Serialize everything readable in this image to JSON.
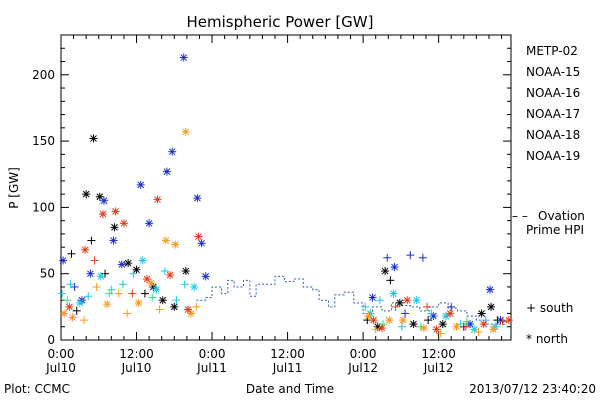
{
  "chart_data": {
    "type": "scatter",
    "title": "Hemispheric Power [GW]",
    "xlabel": "Date and Time",
    "ylabel": "P [GW]",
    "ylim": [
      0,
      230
    ],
    "xlim": [
      "2013-07-10 00:00",
      "2013-07-12 23:30"
    ],
    "y_ticks": [
      0,
      50,
      100,
      150,
      200
    ],
    "x_ticks": [
      {
        "t": "2013-07-10 00:00",
        "line1": "0:00",
        "line2": "Jul10"
      },
      {
        "t": "2013-07-10 12:00",
        "line1": "12:00",
        "line2": "Jul10"
      },
      {
        "t": "2013-07-11 00:00",
        "line1": "0:00",
        "line2": "Jul11"
      },
      {
        "t": "2013-07-11 12:00",
        "line1": "12:00",
        "line2": "Jul11"
      },
      {
        "t": "2013-07-12 00:00",
        "line1": "0:00",
        "line2": "Jul12"
      },
      {
        "t": "2013-07-12 12:00",
        "line1": "12:00",
        "line2": "Jul12"
      }
    ],
    "grid": false,
    "legend_position": "right",
    "marker_legend": {
      "south": "+ south",
      "north": "* north"
    },
    "series": [
      {
        "name": "METP-02",
        "color": "#000000",
        "points": [
          [
            "2013-07-10 01:40",
            "south",
            65
          ],
          [
            "2013-07-10 02:30",
            "south",
            22
          ],
          [
            "2013-07-10 04:00",
            "north",
            110
          ],
          [
            "2013-07-10 04:50",
            "south",
            75
          ],
          [
            "2013-07-10 05:10",
            "north",
            152
          ],
          [
            "2013-07-10 06:10",
            "north",
            108
          ],
          [
            "2013-07-10 07:00",
            "south",
            50
          ],
          [
            "2013-07-10 08:30",
            "north",
            85
          ],
          [
            "2013-07-10 10:40",
            "north",
            58
          ],
          [
            "2013-07-10 12:00",
            "north",
            53
          ],
          [
            "2013-07-10 13:20",
            "south",
            35
          ],
          [
            "2013-07-10 14:40",
            "north",
            40
          ],
          [
            "2013-07-10 16:10",
            "north",
            30
          ],
          [
            "2013-07-10 18:00",
            "north",
            25
          ],
          [
            "2013-07-10 19:50",
            "north",
            52
          ],
          [
            "2013-07-12 00:40",
            "south",
            15
          ],
          [
            "2013-07-12 02:20",
            "north",
            10
          ],
          [
            "2013-07-12 03:30",
            "north",
            52
          ],
          [
            "2013-07-12 04:20",
            "south",
            45
          ],
          [
            "2013-07-12 05:50",
            "north",
            28
          ],
          [
            "2013-07-12 08:00",
            "north",
            12
          ],
          [
            "2013-07-12 10:20",
            "south",
            15
          ],
          [
            "2013-07-12 12:40",
            "north",
            12
          ],
          [
            "2013-07-12 16:00",
            "south",
            10
          ],
          [
            "2013-07-12 18:50",
            "north",
            20
          ],
          [
            "2013-07-12 20:20",
            "north",
            25
          ],
          [
            "2013-07-12 21:20",
            "south",
            15
          ]
        ]
      },
      {
        "name": "NOAA-15",
        "color": "#1a2ecc",
        "points": [
          [
            "2013-07-10 00:20",
            "north",
            60
          ],
          [
            "2013-07-10 02:10",
            "south",
            40
          ],
          [
            "2013-07-10 03:20",
            "north",
            30
          ],
          [
            "2013-07-10 04:40",
            "north",
            50
          ],
          [
            "2013-07-10 06:50",
            "north",
            105
          ],
          [
            "2013-07-10 08:20",
            "north",
            75
          ],
          [
            "2013-07-10 09:40",
            "north",
            57
          ],
          [
            "2013-07-10 12:40",
            "north",
            117
          ],
          [
            "2013-07-10 14:00",
            "north",
            88
          ],
          [
            "2013-07-10 16:50",
            "north",
            127
          ],
          [
            "2013-07-10 17:40",
            "north",
            142
          ],
          [
            "2013-07-10 19:30",
            "north",
            213
          ],
          [
            "2013-07-10 21:40",
            "north",
            107
          ],
          [
            "2013-07-10 22:20",
            "north",
            73
          ],
          [
            "2013-07-10 23:00",
            "north",
            48
          ],
          [
            "2013-07-12 01:30",
            "north",
            32
          ],
          [
            "2013-07-12 03:50",
            "south",
            62
          ],
          [
            "2013-07-12 05:00",
            "north",
            55
          ],
          [
            "2013-07-12 06:40",
            "south",
            20
          ],
          [
            "2013-07-12 07:30",
            "south",
            64
          ],
          [
            "2013-07-12 09:30",
            "south",
            62
          ],
          [
            "2013-07-12 11:10",
            "north",
            18
          ],
          [
            "2013-07-12 14:00",
            "south",
            25
          ],
          [
            "2013-07-12 17:00",
            "north",
            12
          ],
          [
            "2013-07-12 20:10",
            "north",
            38
          ],
          [
            "2013-07-12 21:50",
            "north",
            15
          ]
        ]
      },
      {
        "name": "NOAA-16",
        "color": "#1ec8e6",
        "points": [
          [
            "2013-07-10 00:10",
            "south",
            35
          ],
          [
            "2013-07-10 01:30",
            "south",
            42
          ],
          [
            "2013-07-10 03:00",
            "north",
            28
          ],
          [
            "2013-07-10 04:20",
            "south",
            33
          ],
          [
            "2013-07-10 06:20",
            "north",
            48
          ],
          [
            "2013-07-10 08:00",
            "south",
            38
          ],
          [
            "2013-07-10 09:50",
            "south",
            42
          ],
          [
            "2013-07-10 11:30",
            "south",
            50
          ],
          [
            "2013-07-10 13:00",
            "north",
            60
          ],
          [
            "2013-07-10 15:10",
            "north",
            38
          ],
          [
            "2013-07-10 16:30",
            "south",
            52
          ],
          [
            "2013-07-10 18:20",
            "south",
            30
          ],
          [
            "2013-07-10 19:40",
            "south",
            42
          ],
          [
            "2013-07-10 21:10",
            "north",
            40
          ],
          [
            "2013-07-12 00:20",
            "south",
            25
          ],
          [
            "2013-07-12 01:10",
            "north",
            20
          ],
          [
            "2013-07-12 02:40",
            "south",
            30
          ],
          [
            "2013-07-12 04:50",
            "north",
            35
          ],
          [
            "2013-07-12 06:10",
            "south",
            10
          ],
          [
            "2013-07-12 08:30",
            "north",
            30
          ],
          [
            "2013-07-12 10:50",
            "south",
            20
          ],
          [
            "2013-07-12 13:10",
            "north",
            18
          ],
          [
            "2013-07-12 15:30",
            "south",
            12
          ],
          [
            "2013-07-12 17:40",
            "north",
            8
          ],
          [
            "2013-07-12 19:30",
            "south",
            15
          ],
          [
            "2013-07-12 21:00",
            "north",
            10
          ]
        ]
      },
      {
        "name": "NOAA-17",
        "color": "#2ee87a",
        "points": [
          [
            "2013-07-10 01:00",
            "south",
            30
          ],
          [
            "2013-07-10 07:40",
            "south",
            35
          ],
          [
            "2013-07-10 14:30",
            "south",
            32
          ],
          [
            "2013-07-12 03:10",
            "south",
            12
          ],
          [
            "2013-07-12 09:10",
            "south",
            10
          ],
          [
            "2013-07-12 16:30",
            "south",
            14
          ]
        ]
      },
      {
        "name": "NOAA-18",
        "color": "#f29a1e",
        "points": [
          [
            "2013-07-10 00:30",
            "north",
            20
          ],
          [
            "2013-07-10 01:50",
            "north",
            17
          ],
          [
            "2013-07-10 03:40",
            "south",
            15
          ],
          [
            "2013-07-10 05:40",
            "south",
            40
          ],
          [
            "2013-07-10 07:20",
            "north",
            27
          ],
          [
            "2013-07-10 09:10",
            "south",
            35
          ],
          [
            "2013-07-10 10:30",
            "south",
            20
          ],
          [
            "2013-07-10 12:20",
            "north",
            28
          ],
          [
            "2013-07-10 14:20",
            "north",
            43
          ],
          [
            "2013-07-10 15:40",
            "south",
            23
          ],
          [
            "2013-07-10 16:40",
            "north",
            75
          ],
          [
            "2013-07-10 18:10",
            "north",
            72
          ],
          [
            "2013-07-10 19:50",
            "north",
            157
          ],
          [
            "2013-07-10 20:40",
            "north",
            20
          ],
          [
            "2013-07-10 21:30",
            "south",
            25
          ],
          [
            "2013-07-12 00:50",
            "north",
            18
          ],
          [
            "2013-07-12 02:00",
            "south",
            8
          ],
          [
            "2013-07-12 04:10",
            "north",
            15
          ],
          [
            "2013-07-12 06:20",
            "north",
            15
          ],
          [
            "2013-07-12 09:40",
            "north",
            9
          ],
          [
            "2013-07-12 12:20",
            "south",
            5
          ],
          [
            "2013-07-12 14:50",
            "north",
            10
          ],
          [
            "2013-07-12 18:20",
            "south",
            6
          ],
          [
            "2013-07-12 20:40",
            "north",
            8
          ]
        ]
      },
      {
        "name": "NOAA-19",
        "color": "#e63a1a",
        "points": [
          [
            "2013-07-10 01:20",
            "north",
            25
          ],
          [
            "2013-07-10 03:50",
            "north",
            68
          ],
          [
            "2013-07-10 05:20",
            "south",
            60
          ],
          [
            "2013-07-10 06:40",
            "north",
            95
          ],
          [
            "2013-07-10 08:40",
            "north",
            97
          ],
          [
            "2013-07-10 10:00",
            "north",
            88
          ],
          [
            "2013-07-10 11:20",
            "south",
            35
          ],
          [
            "2013-07-10 13:40",
            "north",
            46
          ],
          [
            "2013-07-10 15:20",
            "north",
            106
          ],
          [
            "2013-07-10 17:20",
            "north",
            49
          ],
          [
            "2013-07-10 20:10",
            "north",
            23
          ],
          [
            "2013-07-10 21:50",
            "north",
            78
          ],
          [
            "2013-07-12 01:40",
            "north",
            15
          ],
          [
            "2013-07-12 03:00",
            "north",
            9
          ],
          [
            "2013-07-12 05:10",
            "south",
            25
          ],
          [
            "2013-07-12 07:00",
            "north",
            30
          ],
          [
            "2013-07-12 10:10",
            "south",
            25
          ],
          [
            "2013-07-12 11:40",
            "north",
            8
          ],
          [
            "2013-07-12 13:50",
            "north",
            20
          ],
          [
            "2013-07-12 16:20",
            "south",
            10
          ],
          [
            "2013-07-12 19:10",
            "north",
            12
          ],
          [
            "2013-07-12 22:10",
            "south",
            14
          ],
          [
            "2013-07-12 23:10",
            "north",
            15
          ]
        ]
      }
    ],
    "ovation": {
      "name_line1": "Ovation",
      "name_line2": "Prime HPI",
      "legend_marker": "– –",
      "color": "#2b5fb8",
      "points": [
        [
          "2013-07-10 21:30",
          30
        ],
        [
          "2013-07-10 23:00",
          32
        ],
        [
          "2013-07-11 00:00",
          40
        ],
        [
          "2013-07-11 01:30",
          35
        ],
        [
          "2013-07-11 02:30",
          45
        ],
        [
          "2013-07-11 03:30",
          40
        ],
        [
          "2013-07-11 05:00",
          45
        ],
        [
          "2013-07-11 06:00",
          33
        ],
        [
          "2013-07-11 07:00",
          42
        ],
        [
          "2013-07-11 09:00",
          42
        ],
        [
          "2013-07-11 10:00",
          48
        ],
        [
          "2013-07-11 11:30",
          44
        ],
        [
          "2013-07-11 13:00",
          46
        ],
        [
          "2013-07-11 14:30",
          40
        ],
        [
          "2013-07-11 16:00",
          38
        ],
        [
          "2013-07-11 17:00",
          30
        ],
        [
          "2013-07-11 18:30",
          25
        ],
        [
          "2013-07-11 19:30",
          34
        ],
        [
          "2013-07-11 21:00",
          36
        ],
        [
          "2013-07-11 22:30",
          28
        ],
        [
          "2013-07-12 00:00",
          20
        ],
        [
          "2013-07-12 01:30",
          25
        ],
        [
          "2013-07-12 03:00",
          22
        ],
        [
          "2013-07-12 04:30",
          28
        ],
        [
          "2013-07-12 06:00",
          26
        ],
        [
          "2013-07-12 07:30",
          25
        ],
        [
          "2013-07-12 09:00",
          22
        ],
        [
          "2013-07-12 10:30",
          25
        ],
        [
          "2013-07-12 12:00",
          28
        ],
        [
          "2013-07-12 13:30",
          24
        ],
        [
          "2013-07-12 15:00",
          22
        ],
        [
          "2013-07-12 16:30",
          18
        ],
        [
          "2013-07-12 18:00",
          15
        ],
        [
          "2013-07-12 19:30",
          12
        ],
        [
          "2013-07-12 21:00",
          12
        ],
        [
          "2013-07-12 22:30",
          15
        ]
      ]
    }
  },
  "footer": {
    "left": "Plot: CCMC",
    "right": "2013/07/12 23:40:20"
  }
}
